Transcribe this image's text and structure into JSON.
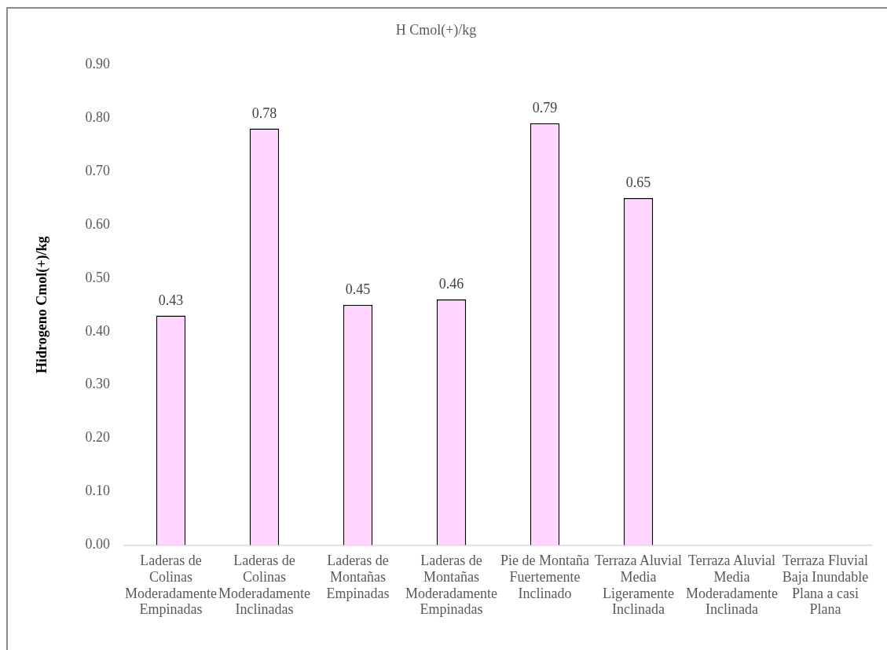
{
  "chart_data": {
    "type": "bar",
    "title": "H Cmol(+)/kg",
    "ylabel": "Hidrogeno Cmol(+)/kg",
    "categories": [
      "Laderas de Colinas Moderadamente Empinadas",
      "Laderas de Colinas Moderadamente Inclinadas",
      "Laderas de Montañas Empinadas",
      "Laderas de Montañas Moderadamente Empinadas",
      "Pie de Montaña Fuertemente Inclinado",
      "Terraza Aluvial Media Ligeramente Inclinada",
      "Terraza Aluvial Media Moderadamente Inclinada",
      "Terraza Fluvial Baja Inundable Plana a casi Plana"
    ],
    "values": [
      0.43,
      0.78,
      0.45,
      0.46,
      0.79,
      0.65,
      null,
      null
    ],
    "color": "#ffd6ff",
    "ylim": [
      0,
      0.9
    ],
    "yticks": [
      {
        "value": 0,
        "label": "0.00"
      },
      {
        "value": 0.1,
        "label": "0.10"
      },
      {
        "value": 0.2,
        "label": "0.20"
      },
      {
        "value": 0.3,
        "label": "0.30"
      },
      {
        "value": 0.4,
        "label": "0.40"
      },
      {
        "value": 0.5,
        "label": "0.50"
      },
      {
        "value": 0.6,
        "label": "0.60"
      },
      {
        "value": 0.7,
        "label": "0.70"
      },
      {
        "value": 0.8,
        "label": "0.80"
      },
      {
        "value": 0.9,
        "label": "0.90"
      }
    ],
    "data_labels": true
  }
}
